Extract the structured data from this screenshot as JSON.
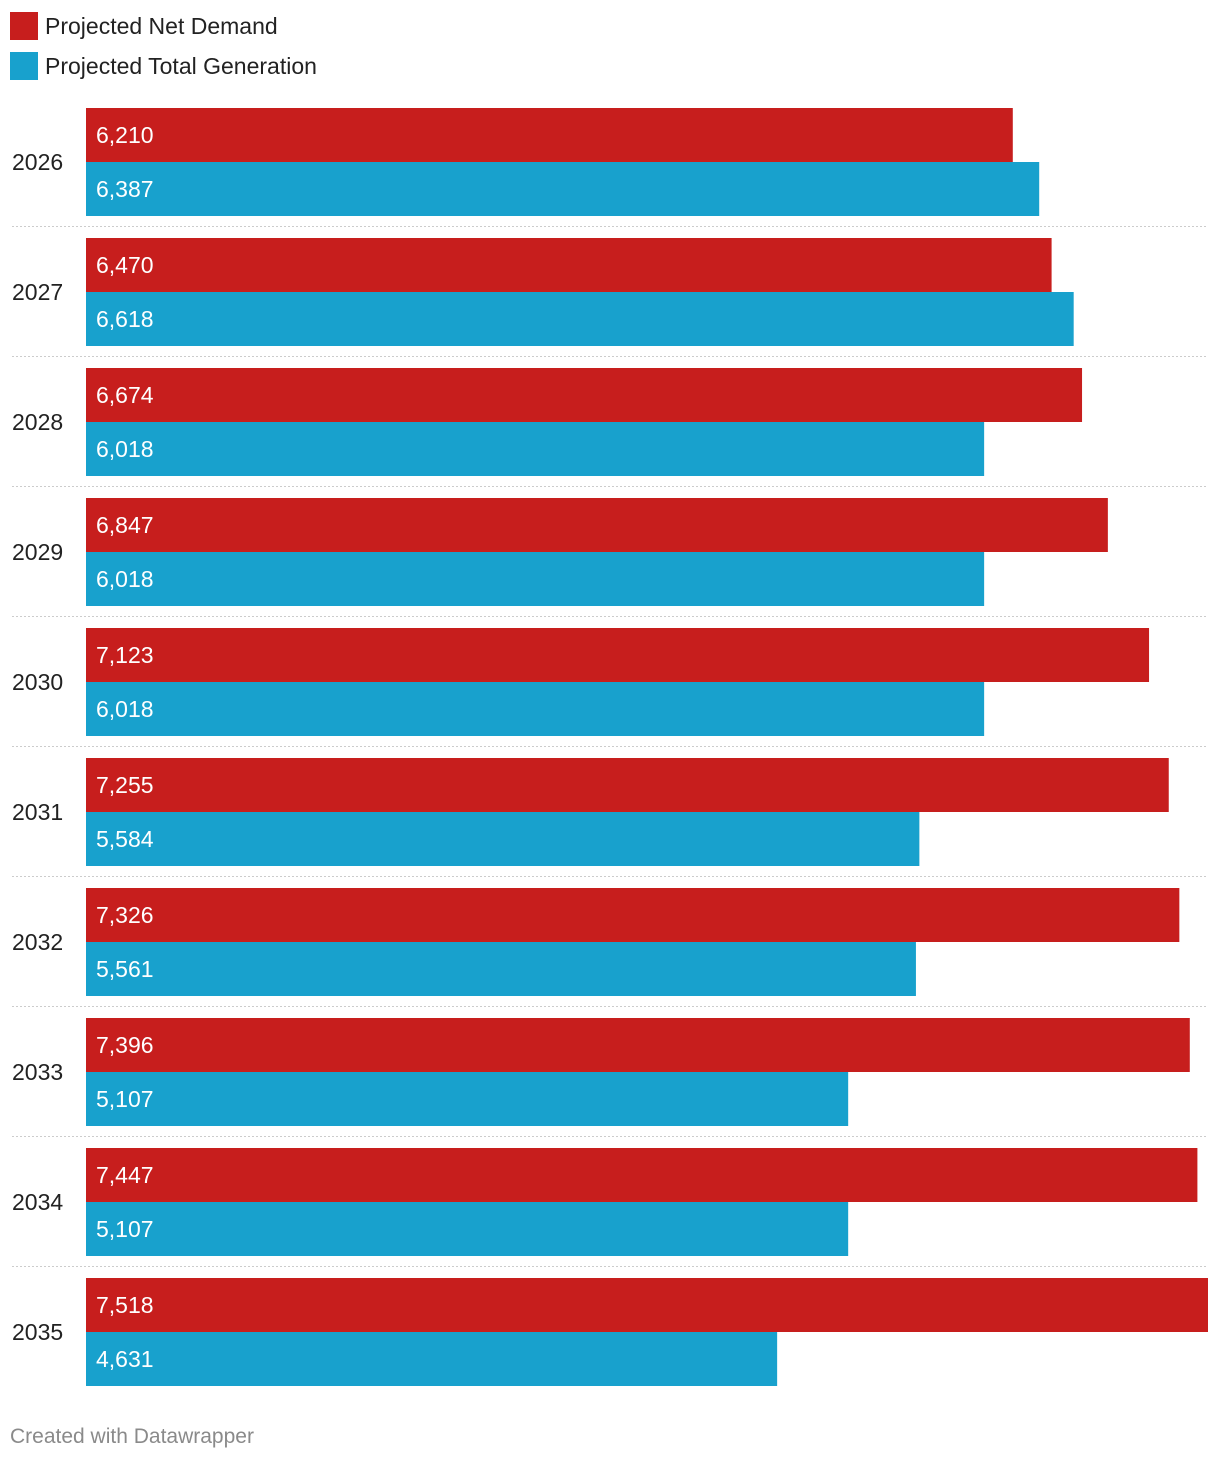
{
  "legend": {
    "demand_label": "Projected Net Demand",
    "generation_label": "Projected Total Generation"
  },
  "chart_data": {
    "type": "bar",
    "orientation": "horizontal",
    "categories": [
      "2026",
      "2027",
      "2028",
      "2029",
      "2030",
      "2031",
      "2032",
      "2033",
      "2034",
      "2035"
    ],
    "series": [
      {
        "name": "Projected Net Demand",
        "color": "#c71e1d",
        "values": [
          6210,
          6470,
          6674,
          6847,
          7123,
          7255,
          7326,
          7396,
          7447,
          7518
        ],
        "labels": [
          "6,210",
          "6,470",
          "6,674",
          "6,847",
          "7,123",
          "7,255",
          "7,326",
          "7,396",
          "7,447",
          "7,518"
        ]
      },
      {
        "name": "Projected Total Generation",
        "color": "#18a1cd",
        "values": [
          6387,
          6618,
          6018,
          6018,
          6018,
          5584,
          5561,
          5107,
          5107,
          4631
        ],
        "labels": [
          "6,387",
          "6,618",
          "6,018",
          "6,018",
          "6,018",
          "5,584",
          "5,561",
          "5,107",
          "5,107",
          "4,631"
        ]
      }
    ],
    "xlim": [
      0,
      7518
    ],
    "grid": false,
    "legend_position": "top-left"
  },
  "colors": {
    "demand": "#c71e1d",
    "generation": "#18a1cd",
    "separator": "#cccccc",
    "value_label": "#ffffff",
    "credit": "#8a8a8a"
  },
  "footer": {
    "credit": "Created with Datawrapper"
  }
}
